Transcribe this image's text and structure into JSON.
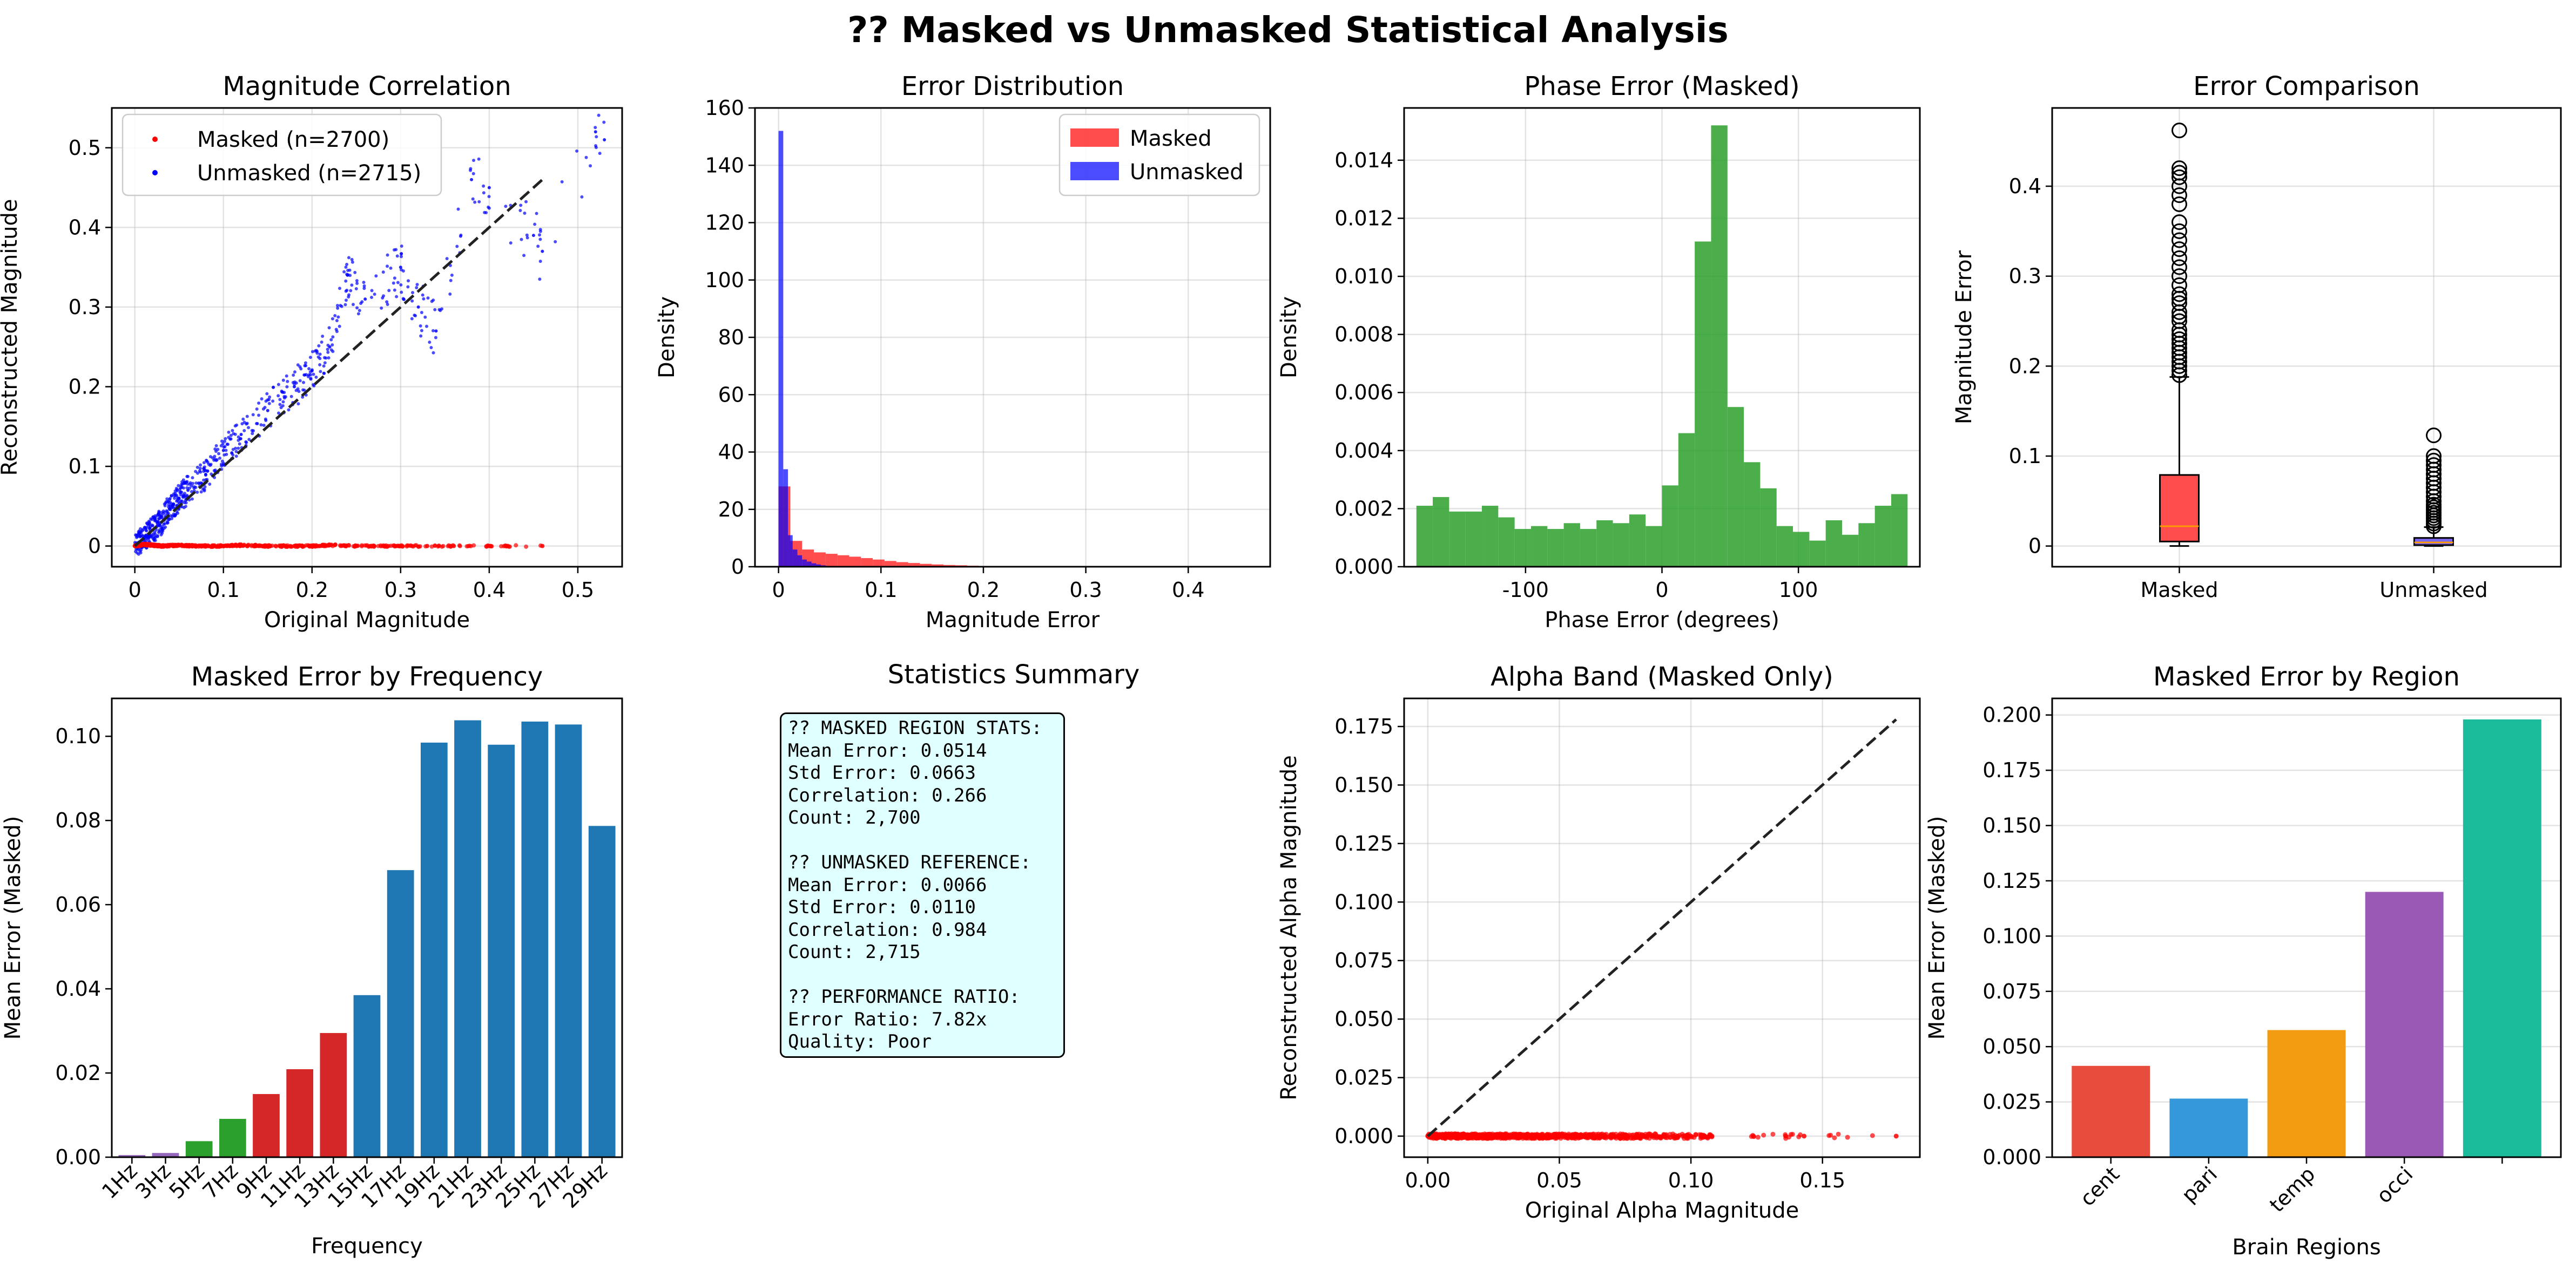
{
  "figure_title": "?? Masked vs Unmasked Statistical Analysis",
  "stats_summary": {
    "title": "Statistics Summary",
    "lines": [
      "?? MASKED REGION STATS:",
      "Mean Error: 0.0514",
      "Std Error: 0.0663",
      "Correlation: 0.266",
      "Count: 2,700",
      "",
      "?? UNMASKED REFERENCE:",
      "Mean Error: 0.0066",
      "Std Error: 0.0110",
      "Correlation: 0.984",
      "Count: 2,715",
      "",
      "?? PERFORMANCE RATIO:",
      "Error Ratio: 7.82x",
      "Quality: Poor"
    ]
  },
  "chart_data": [
    {
      "id": "magnitude-correlation",
      "type": "scatter",
      "title": "Magnitude Correlation",
      "xlabel": "Original Magnitude",
      "ylabel": "Reconstructed Magnitude",
      "xlim": [
        -0.026,
        0.55
      ],
      "ylim": [
        -0.026,
        0.55
      ],
      "xticks": [
        0.0,
        0.1,
        0.2,
        0.3,
        0.4,
        0.5
      ],
      "yticks": [
        0.0,
        0.1,
        0.2,
        0.3,
        0.4,
        0.5
      ],
      "grid": true,
      "legend": "top-left",
      "reference_line": {
        "x": [
          0,
          0.46
        ],
        "y": [
          0,
          0.46
        ],
        "style": "dashed"
      },
      "series": [
        {
          "name": "Masked (n=2700)",
          "color": "#ff0000",
          "description_points": [
            [
              0.0,
              0.0
            ],
            [
              0.01,
              0.002
            ],
            [
              0.02,
              0.001
            ],
            [
              0.03,
              0.0
            ],
            [
              0.05,
              0.001
            ],
            [
              0.07,
              0.0
            ],
            [
              0.1,
              0.0
            ],
            [
              0.12,
              0.001
            ],
            [
              0.15,
              0.0
            ],
            [
              0.18,
              0.0
            ],
            [
              0.2,
              0.0
            ],
            [
              0.22,
              0.001
            ],
            [
              0.25,
              0.0
            ],
            [
              0.28,
              0.0
            ],
            [
              0.3,
              0.0
            ],
            [
              0.33,
              0.0
            ],
            [
              0.36,
              0.0
            ],
            [
              0.4,
              0.0
            ],
            [
              0.42,
              0.0
            ],
            [
              0.46,
              0.0
            ]
          ]
        },
        {
          "name": "Unmasked (n=2715)",
          "color": "#0000ff",
          "description_points": [
            [
              0.0,
              0.0
            ],
            [
              0.01,
              0.01
            ],
            [
              0.02,
              0.02
            ],
            [
              0.03,
              0.03
            ],
            [
              0.04,
              0.05
            ],
            [
              0.05,
              0.06
            ],
            [
              0.06,
              0.07
            ],
            [
              0.08,
              0.09
            ],
            [
              0.1,
              0.12
            ],
            [
              0.12,
              0.14
            ],
            [
              0.15,
              0.17
            ],
            [
              0.18,
              0.2
            ],
            [
              0.2,
              0.22
            ],
            [
              0.22,
              0.25
            ],
            [
              0.24,
              0.34
            ],
            [
              0.26,
              0.31
            ],
            [
              0.3,
              0.35
            ],
            [
              0.32,
              0.3
            ],
            [
              0.34,
              0.27
            ],
            [
              0.38,
              0.46
            ],
            [
              0.4,
              0.45
            ],
            [
              0.45,
              0.39
            ],
            [
              0.46,
              0.37
            ],
            [
              0.52,
              0.52
            ],
            [
              0.53,
              0.51
            ]
          ]
        }
      ]
    },
    {
      "id": "error-distribution",
      "type": "bar",
      "title": "Error Distribution",
      "xlabel": "Magnitude Error",
      "ylabel": "Density",
      "xlim": [
        -0.023,
        0.48
      ],
      "ylim": [
        0,
        160
      ],
      "xticks": [
        0.0,
        0.1,
        0.2,
        0.3,
        0.4
      ],
      "yticks": [
        0,
        20,
        40,
        60,
        80,
        100,
        120,
        140,
        160
      ],
      "grid": true,
      "legend": "top-right",
      "series": [
        {
          "name": "Masked",
          "color": "#ff0000",
          "bin_edges": [
            0.0,
            0.0115,
            0.023,
            0.0345,
            0.046,
            0.0575,
            0.069,
            0.0805,
            0.092,
            0.1035,
            0.115,
            0.1265,
            0.138,
            0.1495,
            0.161,
            0.1725,
            0.184,
            0.1955,
            0.207,
            0.2185,
            0.23
          ],
          "values": [
            28,
            9,
            6,
            5,
            4.5,
            4,
            3.5,
            3,
            2.5,
            2,
            1.6,
            1.3,
            1,
            0.8,
            0.6,
            0.5,
            0.35,
            0.25,
            0.15,
            0.08
          ]
        },
        {
          "name": "Unmasked",
          "color": "#0000ff",
          "bin_edges": [
            0.0,
            0.0046,
            0.0092,
            0.0138,
            0.0184,
            0.023,
            0.0276,
            0.0322,
            0.0368,
            0.0414,
            0.046,
            0.0506,
            0.0552
          ],
          "values": [
            152,
            34,
            11,
            6,
            4,
            2.5,
            1.8,
            1.2,
            0.8,
            0.5,
            0.3,
            0.2
          ]
        }
      ]
    },
    {
      "id": "phase-error",
      "type": "bar",
      "title": "Phase Error (Masked)",
      "xlabel": "Phase Error (degrees)",
      "ylabel": "Density",
      "xlim": [
        -189,
        189
      ],
      "ylim": [
        0,
        0.0158
      ],
      "xticks": [
        -100,
        0,
        100
      ],
      "yticks": [
        0.0,
        0.002,
        0.004,
        0.006,
        0.008,
        0.01,
        0.012,
        0.014
      ],
      "ytick_labels": [
        "0.000",
        "0.002",
        "0.004",
        "0.006",
        "0.008",
        "0.010",
        "0.012",
        "0.014"
      ],
      "grid": true,
      "bin_start": -180,
      "bin_width": 12,
      "color": "#2ca02c",
      "values": [
        0.0021,
        0.0024,
        0.0019,
        0.0019,
        0.0021,
        0.0017,
        0.0013,
        0.0014,
        0.0013,
        0.0015,
        0.0013,
        0.0016,
        0.0015,
        0.0018,
        0.0014,
        0.0028,
        0.0046,
        0.0112,
        0.0152,
        0.0055,
        0.0036,
        0.0027,
        0.0014,
        0.0012,
        0.0009,
        0.0016,
        0.0011,
        0.0015,
        0.0021,
        0.0025
      ]
    },
    {
      "id": "error-comparison",
      "type": "box",
      "title": "Error Comparison",
      "ylabel": "Magnitude Error",
      "categories": [
        "Masked",
        "Unmasked"
      ],
      "ylim": [
        -0.023,
        0.487
      ],
      "yticks": [
        0.0,
        0.1,
        0.2,
        0.3,
        0.4
      ],
      "grid": true,
      "boxes": [
        {
          "label": "Masked",
          "color": "#ff4c4c",
          "whisker_low": 0.0,
          "q1": 0.005,
          "median": 0.022,
          "q3": 0.079,
          "whisker_high": 0.188,
          "outliers": [
            0.19,
            0.195,
            0.2,
            0.205,
            0.21,
            0.215,
            0.22,
            0.225,
            0.23,
            0.235,
            0.24,
            0.25,
            0.255,
            0.26,
            0.27,
            0.275,
            0.28,
            0.29,
            0.3,
            0.31,
            0.32,
            0.33,
            0.34,
            0.35,
            0.36,
            0.38,
            0.39,
            0.4,
            0.41,
            0.415,
            0.42,
            0.462
          ]
        },
        {
          "label": "Unmasked",
          "color": "#7b68ee",
          "whisker_low": 0.0,
          "q1": 0.001,
          "median": 0.004,
          "q3": 0.009,
          "whisker_high": 0.021,
          "outliers": [
            0.022,
            0.025,
            0.028,
            0.031,
            0.034,
            0.037,
            0.04,
            0.043,
            0.046,
            0.05,
            0.055,
            0.06,
            0.065,
            0.07,
            0.075,
            0.08,
            0.085,
            0.09,
            0.095,
            0.1,
            0.123
          ]
        }
      ]
    },
    {
      "id": "masked-error-by-frequency",
      "type": "bar",
      "title": "Masked Error by Frequency",
      "xlabel": "Frequency",
      "ylabel": "Mean Error (Masked)",
      "ylim": [
        0,
        0.109
      ],
      "yticks": [
        0.0,
        0.02,
        0.04,
        0.06,
        0.08,
        0.1
      ],
      "ytick_labels": [
        "0.00",
        "0.02",
        "0.04",
        "0.06",
        "0.08",
        "0.10"
      ],
      "grid": false,
      "categories": [
        "1Hz",
        "3Hz",
        "5Hz",
        "7Hz",
        "9Hz",
        "11Hz",
        "13Hz",
        "15Hz",
        "17Hz",
        "19Hz",
        "21Hz",
        "23Hz",
        "25Hz",
        "27Hz",
        "29Hz"
      ],
      "values": [
        0.0005,
        0.001,
        0.0038,
        0.0091,
        0.015,
        0.0209,
        0.0295,
        0.0385,
        0.0682,
        0.0985,
        0.1038,
        0.098,
        0.1035,
        0.1028,
        0.0787
      ],
      "colors": [
        "#9467bd",
        "#9467bd",
        "#2ca02c",
        "#2ca02c",
        "#d62728",
        "#d62728",
        "#d62728",
        "#1f77b4",
        "#1f77b4",
        "#1f77b4",
        "#1f77b4",
        "#1f77b4",
        "#1f77b4",
        "#1f77b4",
        "#1f77b4"
      ]
    },
    {
      "id": "alpha-band",
      "type": "scatter",
      "title": "Alpha Band (Masked Only)",
      "xlabel": "Original Alpha Magnitude",
      "ylabel": "Reconstructed Alpha Magnitude",
      "xlim": [
        -0.009,
        0.187
      ],
      "ylim": [
        -0.009,
        0.187
      ],
      "xticks": [
        0.0,
        0.05,
        0.1,
        0.15
      ],
      "yticks": [
        0.0,
        0.025,
        0.05,
        0.075,
        0.1,
        0.125,
        0.15,
        0.175
      ],
      "ytick_labels": [
        "0.000",
        "0.025",
        "0.050",
        "0.075",
        "0.100",
        "0.125",
        "0.150",
        "0.175"
      ],
      "xtick_labels": [
        "0.00",
        "0.05",
        "0.10",
        "0.15"
      ],
      "grid": true,
      "reference_line": {
        "x": [
          0,
          0.178
        ],
        "y": [
          0,
          0.178
        ],
        "style": "dashed"
      },
      "series": [
        {
          "color": "#ff0000",
          "description_points": [
            [
              0.0,
              0.0
            ],
            [
              0.005,
              0.0
            ],
            [
              0.01,
              0.0
            ],
            [
              0.015,
              0.0
            ],
            [
              0.02,
              0.0
            ],
            [
              0.025,
              0.0
            ],
            [
              0.03,
              0.0
            ],
            [
              0.035,
              0.0
            ],
            [
              0.04,
              0.0
            ],
            [
              0.045,
              0.0
            ],
            [
              0.05,
              0.0
            ],
            [
              0.055,
              0.0
            ],
            [
              0.06,
              0.0
            ],
            [
              0.065,
              0.0
            ],
            [
              0.07,
              0.0
            ],
            [
              0.075,
              0.0
            ],
            [
              0.08,
              0.0
            ],
            [
              0.085,
              0.0
            ],
            [
              0.09,
              0.0
            ],
            [
              0.095,
              0.0
            ],
            [
              0.1,
              0.0
            ],
            [
              0.105,
              0.0
            ],
            [
              0.108,
              0.0
            ],
            [
              0.136,
              0.0
            ],
            [
              0.143,
              0.0
            ],
            [
              0.178,
              0.0
            ]
          ]
        }
      ]
    },
    {
      "id": "masked-error-by-region",
      "type": "bar",
      "title": "Masked Error by Region",
      "xlabel": "Brain Regions",
      "ylabel": "Mean Error (Masked)",
      "ylim": [
        0,
        0.2075
      ],
      "yticks": [
        0.0,
        0.025,
        0.05,
        0.075,
        0.1,
        0.125,
        0.15,
        0.175,
        0.2
      ],
      "ytick_labels": [
        "0.000",
        "0.025",
        "0.050",
        "0.075",
        "0.100",
        "0.125",
        "0.150",
        "0.175",
        "0.200"
      ],
      "grid": true,
      "categories": [
        "cent",
        "pari",
        "temp",
        "occi",
        ""
      ],
      "values": [
        0.0413,
        0.0265,
        0.0575,
        0.12,
        0.198
      ],
      "colors": [
        "#e74c3c",
        "#3498db",
        "#f39c12",
        "#9b59b6",
        "#1abc9c"
      ]
    }
  ]
}
